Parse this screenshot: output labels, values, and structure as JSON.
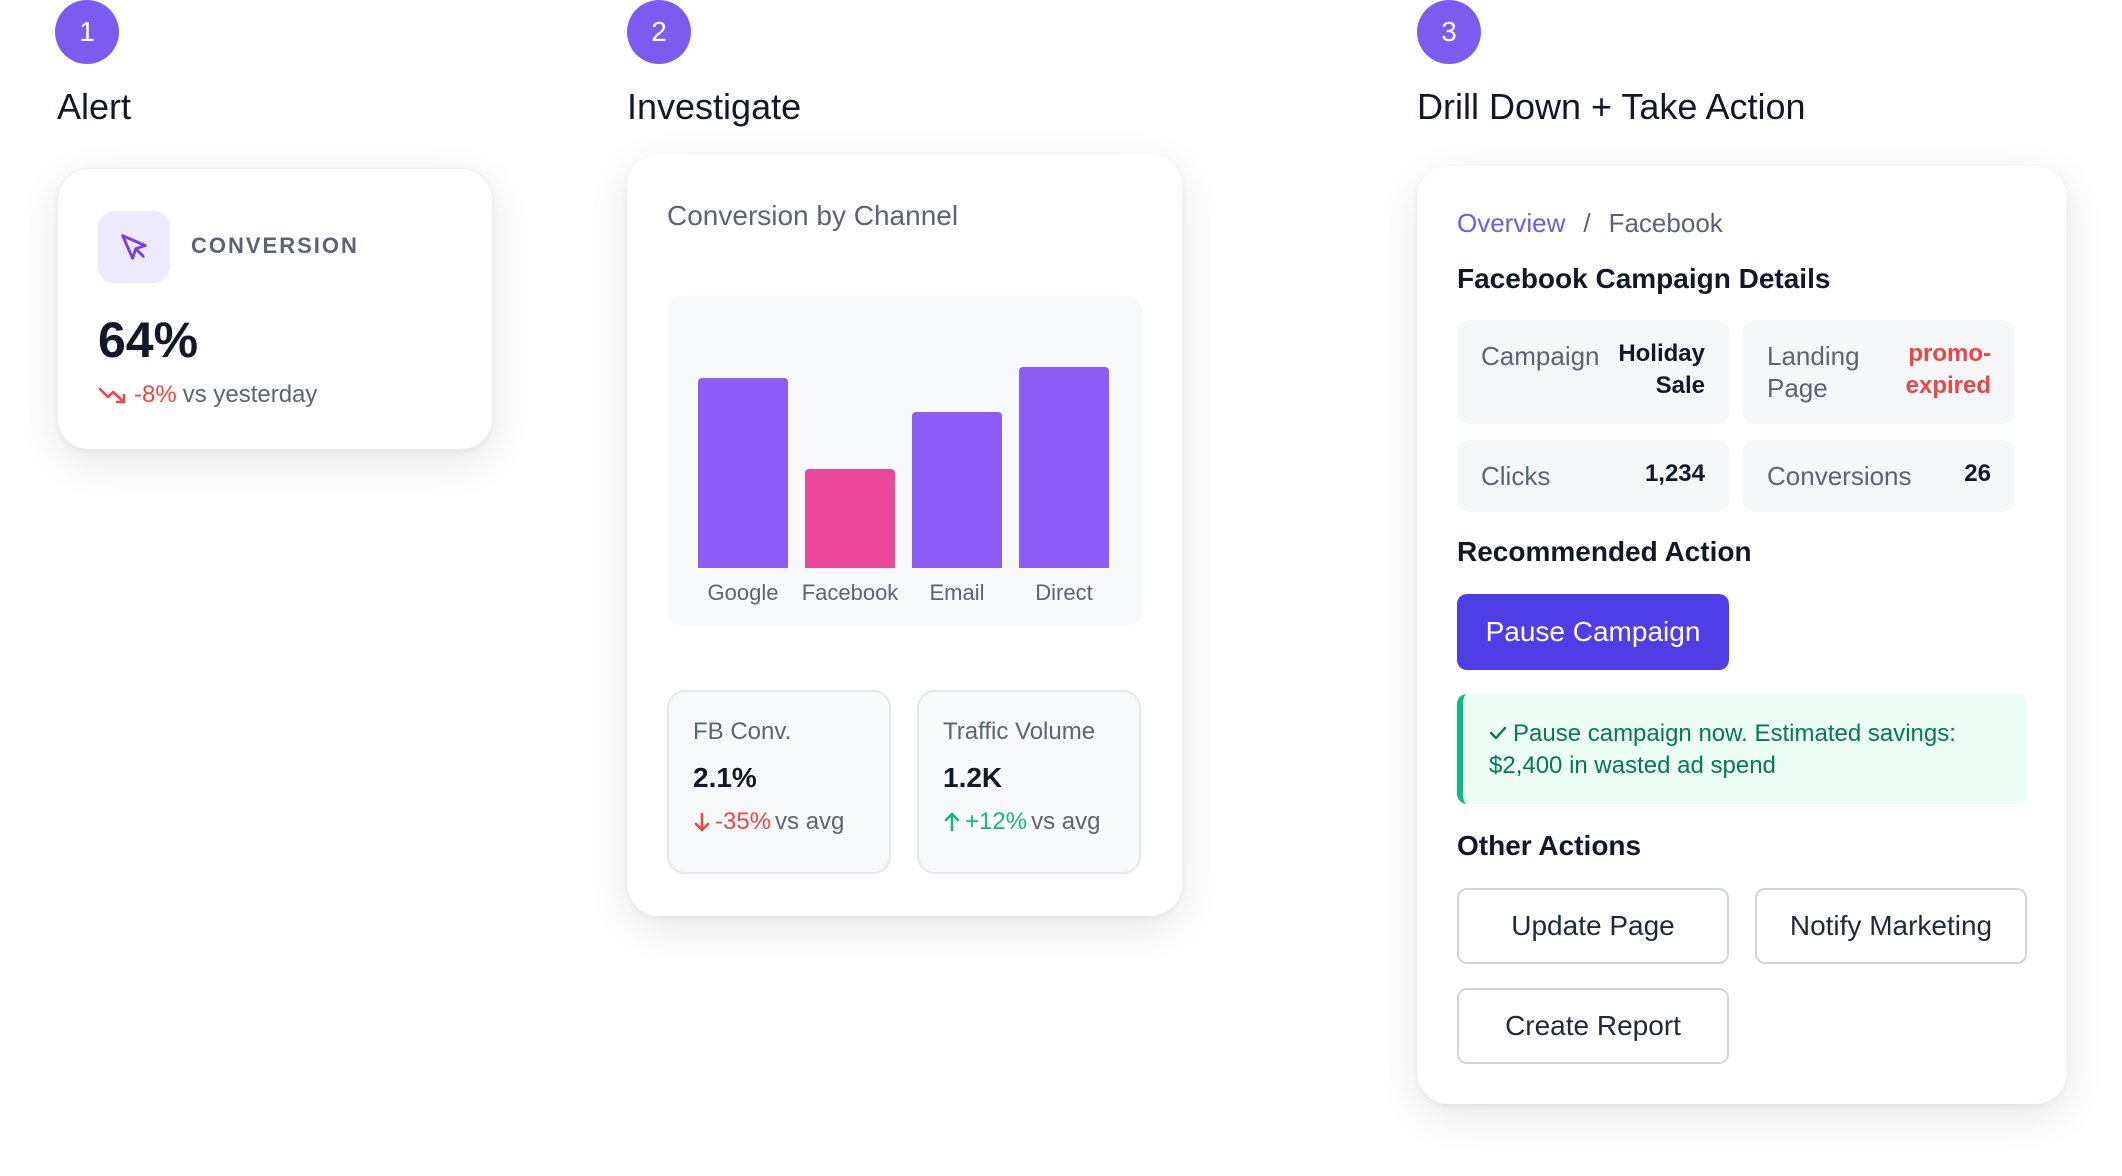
{
  "steps": [
    {
      "number": "1",
      "title": "Alert"
    },
    {
      "number": "2",
      "title": "Investigate"
    },
    {
      "number": "3",
      "title": "Drill Down + Take Action"
    }
  ],
  "alert": {
    "icon": "cursor-arrow-icon",
    "label": "CONVERSION",
    "value": "64%",
    "delta": "-8%",
    "delta_suffix": "vs yesterday",
    "delta_icon": "trend-down-icon"
  },
  "investigate": {
    "chart_title": "Conversion by Channel",
    "stats": [
      {
        "label": "FB Conv.",
        "value": "2.1%",
        "delta": "-35%",
        "delta_suffix": "vs avg",
        "direction": "down"
      },
      {
        "label": "Traffic Volume",
        "value": "1.2K",
        "delta": "+12%",
        "delta_suffix": "vs avg",
        "direction": "up"
      }
    ]
  },
  "chart_data": {
    "type": "bar",
    "title": "Conversion by Channel",
    "categories": [
      "Google",
      "Facebook",
      "Email",
      "Direct"
    ],
    "values": [
      67,
      35,
      55,
      71
    ],
    "colors": [
      "#8b5cf6",
      "#ec4899",
      "#8b5cf6",
      "#8b5cf6"
    ],
    "ylim": [
      0,
      80
    ],
    "grid": false
  },
  "action": {
    "breadcrumb": {
      "link": "Overview",
      "separator": "/",
      "current": "Facebook"
    },
    "details_title": "Facebook Campaign Details",
    "details": [
      {
        "label": "Campaign",
        "value": "Holiday Sale",
        "value_color": "#111827"
      },
      {
        "label": "Landing Page",
        "value": "promo-expired",
        "value_color": "#ef4444"
      },
      {
        "label": "Clicks",
        "value": "1,234",
        "value_color": "#111827"
      },
      {
        "label": "Conversions",
        "value": "26",
        "value_color": "#111827"
      }
    ],
    "recommended_title": "Recommended Action",
    "primary_button": "Pause Campaign",
    "notice": "Pause campaign now. Estimated savings: $2,400 in wasted ad spend",
    "other_title": "Other Actions",
    "other_buttons": [
      "Update Page",
      "Notify Marketing",
      "Create Report"
    ]
  },
  "colors": {
    "accent": "#7c5cf0",
    "primary_button": "#4f3ee6",
    "negative": "#ef4444",
    "positive": "#10b981"
  }
}
